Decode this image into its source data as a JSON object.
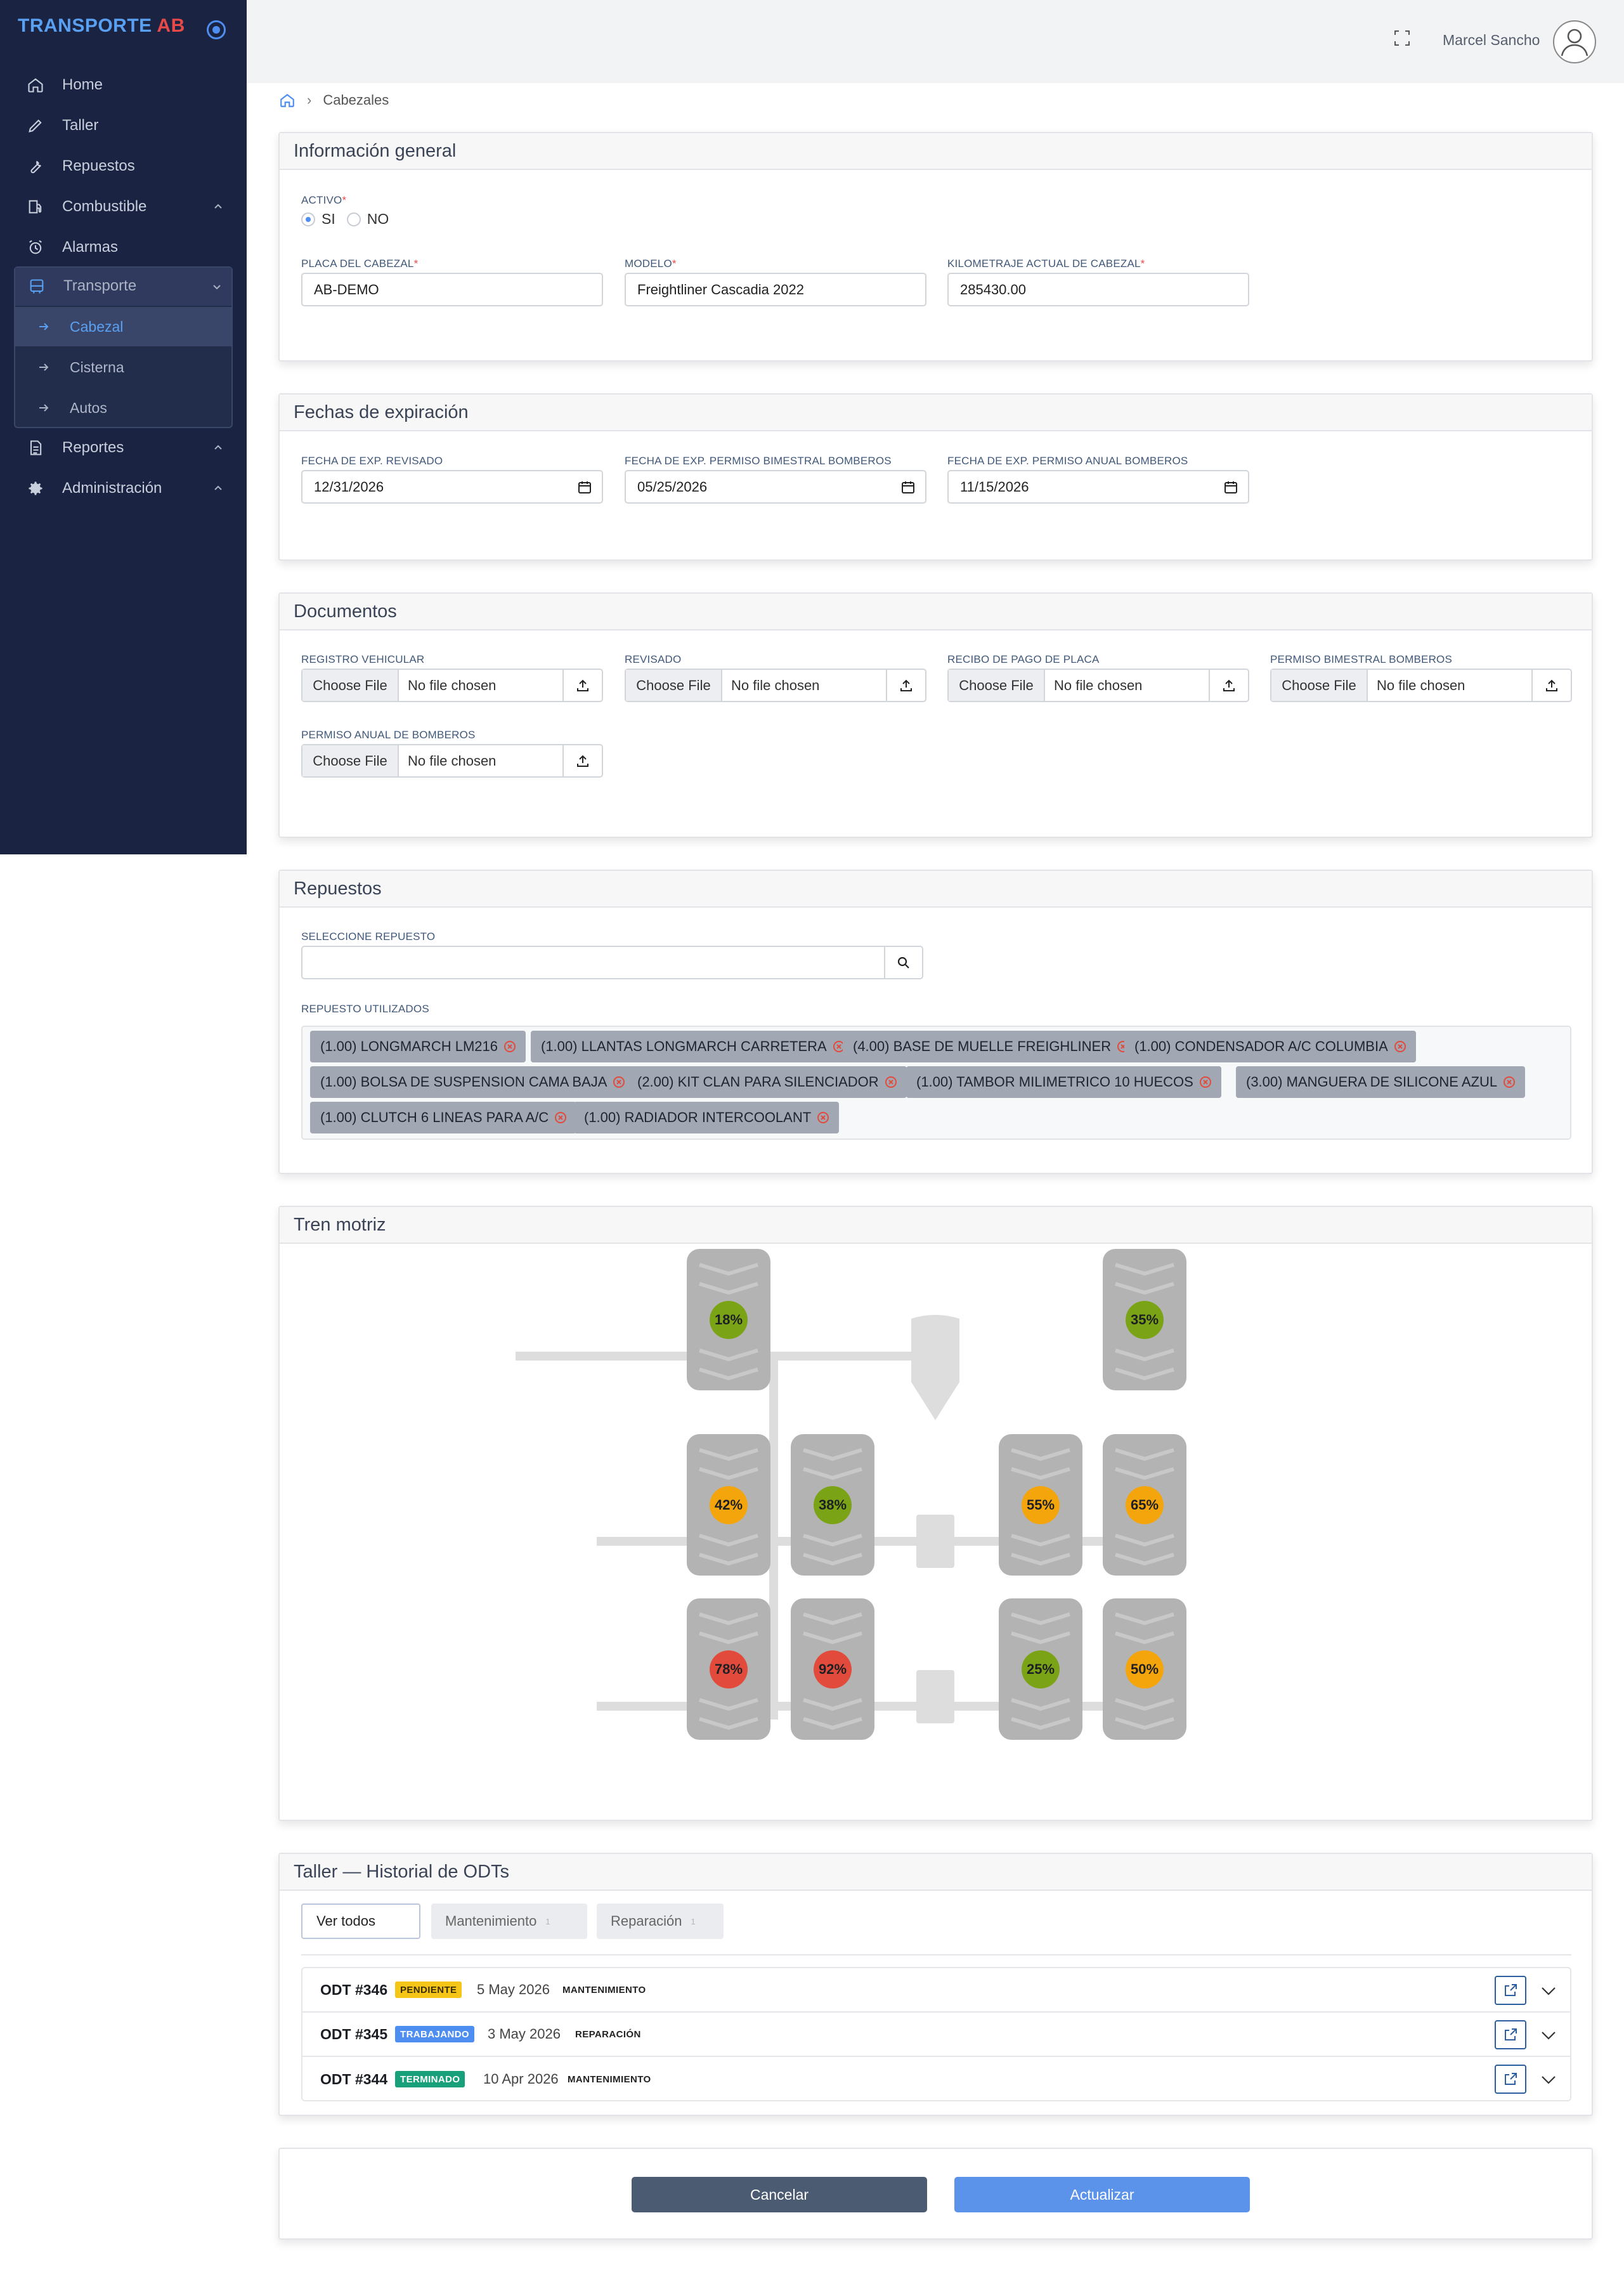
{
  "sidebar": {
    "brand_text": "TRANSPORTE ",
    "brand_accent": "AB",
    "items": [
      {
        "label": "Home",
        "icon": "home-icon"
      },
      {
        "label": "Taller",
        "icon": "pencil-icon"
      },
      {
        "label": "Repuestos",
        "icon": "wrench-icon"
      },
      {
        "label": "Combustible",
        "icon": "fuel-icon"
      },
      {
        "label": "Alarmas",
        "icon": "alarm-icon"
      },
      {
        "label": "Transporte",
        "icon": "bus-icon"
      },
      {
        "label": "Reportes",
        "icon": "document-icon"
      },
      {
        "label": "Administración",
        "icon": "gear-icon"
      }
    ],
    "transporte_sub": [
      {
        "label": "Cabezal",
        "active": true
      },
      {
        "label": "Cisterna",
        "active": false
      },
      {
        "label": "Autos",
        "active": false
      }
    ]
  },
  "topbar": {
    "user_name": "Marcel Sancho"
  },
  "breadcrumb": {
    "current": "Cabezales"
  },
  "general": {
    "title": "Información general",
    "activo_label": "ACTIVO",
    "required_mark": "*",
    "opt_si": "SI",
    "opt_no": "NO",
    "placa_label": "PLACA DEL CABEZAL",
    "placa_value": "AB-DEMO",
    "modelo_label": "MODELO",
    "modelo_value": "Freightliner Cascadia 2022",
    "km_label": "KILOMETRAJE ACTUAL DE CABEZAL",
    "km_value": "285430.00"
  },
  "fechas": {
    "title": "Fechas de expiración",
    "fields": [
      {
        "label": "FECHA DE EXP. REVISADO",
        "value": "12/31/2026"
      },
      {
        "label": "FECHA DE EXP. PERMISO BIMESTRAL BOMBEROS",
        "value": "05/25/2026"
      },
      {
        "label": "FECHA DE EXP. PERMISO ANUAL BOMBEROS",
        "value": "11/15/2026"
      }
    ]
  },
  "documentos": {
    "title": "Documentos",
    "choose_label": "Choose File",
    "no_file": "No file chosen",
    "fields": [
      {
        "label": "REGISTRO VEHICULAR"
      },
      {
        "label": "REVISADO"
      },
      {
        "label": "RECIBO DE PAGO DE PLACA"
      },
      {
        "label": "PERMISO BIMESTRAL BOMBEROS"
      },
      {
        "label": "PERMISO ANUAL DE BOMBEROS"
      }
    ]
  },
  "repuestos": {
    "title": "Repuestos",
    "select_label": "SELECCIONE REPUESTO",
    "used_label": "REPUESTO UTILIZADOS",
    "tags": [
      "(1.00) LONGMARCH LM216",
      "(1.00) LLANTAS LONGMARCH CARRETERA",
      "(4.00) BASE DE MUELLE FREIGHLINER",
      "(1.00) CONDENSADOR A/C COLUMBIA",
      "(1.00) BOLSA DE SUSPENSION CAMA BAJA",
      "(2.00) KIT CLAN PARA SILENCIADOR",
      "(1.00) TAMBOR MILIMETRICO 10 HUECOS",
      "(3.00) MANGUERA DE SILICONE AZUL",
      "(1.00) CLUTCH 6 LINEAS PARA A/C",
      "(1.00) RADIADOR INTERCOOLANT"
    ]
  },
  "tren": {
    "title": "Tren motriz",
    "tires": [
      {
        "pct": "18%",
        "color": "#7aa316"
      },
      {
        "pct": "35%",
        "color": "#7aa316"
      },
      {
        "pct": "42%",
        "color": "#f5a50c"
      },
      {
        "pct": "38%",
        "color": "#7aa316"
      },
      {
        "pct": "55%",
        "color": "#f5a50c"
      },
      {
        "pct": "65%",
        "color": "#f5a50c"
      },
      {
        "pct": "78%",
        "color": "#e24b3b"
      },
      {
        "pct": "92%",
        "color": "#e24b3b"
      },
      {
        "pct": "25%",
        "color": "#7aa316"
      },
      {
        "pct": "50%",
        "color": "#f5a50c"
      }
    ]
  },
  "historial": {
    "title": "Taller — Historial de ODTs",
    "tabs": [
      {
        "label": "Ver todos",
        "count": ""
      },
      {
        "label": "Mantenimiento",
        "count": "1"
      },
      {
        "label": "Reparación",
        "count": "1"
      }
    ],
    "rows": [
      {
        "num": "ODT #346",
        "status": "PENDIENTE",
        "date": "5 May 2026",
        "type": "MANTENIMIENTO"
      },
      {
        "num": "ODT #345",
        "status": "TRABAJANDO",
        "date": "3 May 2026",
        "type": "REPARACIÓN"
      },
      {
        "num": "ODT #344",
        "status": "TERMINADO",
        "date": "10 Apr 2026",
        "type": "MANTENIMIENTO"
      }
    ]
  },
  "footer": {
    "cancel_label": "Cancelar",
    "update_label": "Actualizar"
  }
}
